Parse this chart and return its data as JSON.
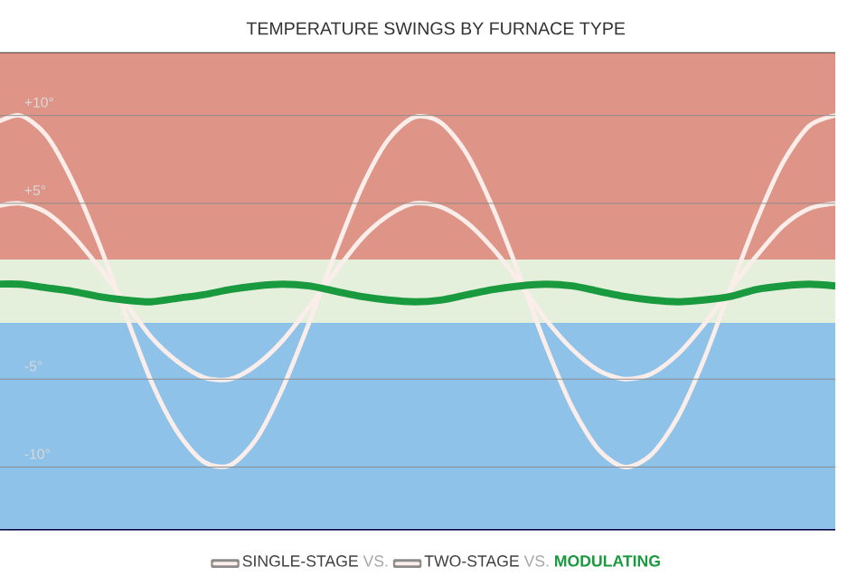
{
  "chart_data": {
    "type": "line",
    "title": "TEMPERATURE SWINGS BY FURNACE TYPE",
    "categories": [
      null,
      null,
      null,
      null,
      null,
      null,
      null,
      null,
      null,
      null,
      null,
      null,
      null,
      null,
      null,
      null,
      null,
      null,
      null,
      null,
      null,
      null,
      null,
      null,
      null,
      null,
      null,
      null,
      null,
      null,
      null,
      null,
      null
    ],
    "series": [
      {
        "name": "SINGLE-STAGE",
        "color": "#fbeeea",
        "values": [
          9.5,
          10,
          8.9,
          6.3,
          2.8,
          -1.2,
          -5.1,
          -8.0,
          -9.7,
          -9.9,
          -8.4,
          -5.5,
          -1.8,
          2.2,
          5.9,
          8.6,
          9.9,
          9.6,
          7.8,
          4.7,
          0.9,
          -3.1,
          -6.6,
          -9.0,
          -10.0,
          -9.3,
          -7.2,
          -3.9,
          0.1,
          4.0,
          7.3,
          9.4,
          10.0
        ]
      },
      {
        "name": "TWO-STAGE",
        "color": "#fbeeea",
        "values": [
          4.8,
          5,
          4.5,
          3.2,
          1.4,
          -0.6,
          -2.6,
          -4,
          -4.9,
          -5,
          -4.2,
          -2.8,
          -0.9,
          1.1,
          3,
          4.3,
          5,
          4.8,
          3.9,
          2.4,
          0.5,
          -1.6,
          -3.3,
          -4.5,
          -5,
          -4.7,
          -3.6,
          -1.9,
          0.1,
          2,
          3.7,
          4.7,
          5
        ]
      },
      {
        "name": "MODULATING",
        "color": "#1a9a3e",
        "values": [
          0.4,
          0.4,
          0.2,
          0,
          -0.3,
          -0.5,
          -0.6,
          -0.4,
          -0.2,
          0.1,
          0.3,
          0.4,
          0.3,
          0,
          -0.3,
          -0.5,
          -0.6,
          -0.5,
          -0.2,
          0.1,
          0.3,
          0.4,
          0.3,
          0,
          -0.3,
          -0.5,
          -0.6,
          -0.5,
          -0.3,
          0.1,
          0.3,
          0.4,
          0.3
        ]
      }
    ],
    "ylim": [
      -13.6,
      13.6
    ],
    "yticks": [
      {
        "value": 10,
        "label": "+10°"
      },
      {
        "value": 5,
        "label": "+5°"
      },
      {
        "value": -5,
        "label": "-5°"
      },
      {
        "value": -10,
        "label": "-10°"
      }
    ],
    "bands": [
      {
        "axis": "y",
        "from": 1.8,
        "to": 13.6,
        "color": "#de9486"
      },
      {
        "axis": "y",
        "from": -1.8,
        "to": 1.8,
        "color": "#e4efdc"
      },
      {
        "axis": "y",
        "from": -13.6,
        "to": -1.8,
        "color": "#8fc2e8"
      }
    ],
    "annotations": [
      "VS.",
      "VS."
    ],
    "grid": "y",
    "legend": "bottom",
    "tick_labels": "y",
    "marker": "none",
    "line_style": "solid"
  }
}
